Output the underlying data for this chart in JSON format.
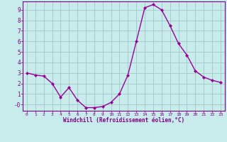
{
  "x": [
    0,
    1,
    2,
    3,
    4,
    5,
    6,
    7,
    8,
    9,
    10,
    11,
    12,
    13,
    14,
    15,
    16,
    17,
    18,
    19,
    20,
    21,
    22,
    23
  ],
  "y": [
    3.0,
    2.8,
    2.7,
    2.0,
    0.7,
    1.6,
    0.4,
    -0.3,
    -0.3,
    -0.2,
    0.2,
    1.0,
    2.8,
    6.0,
    9.2,
    9.5,
    9.0,
    7.5,
    5.8,
    4.7,
    3.2,
    2.6,
    2.3,
    2.1
  ],
  "line_color": "#990099",
  "marker": "D",
  "marker_size": 2.0,
  "bg_color": "#c8ecec",
  "grid_color": "#a8cccc",
  "xlabel": "Windchill (Refroidissement éolien,°C)",
  "xlabel_color": "#800080",
  "tick_color": "#800080",
  "ylim": [
    -0.6,
    9.8
  ],
  "xlim": [
    -0.5,
    23.5
  ],
  "yticks": [
    0,
    1,
    2,
    3,
    4,
    5,
    6,
    7,
    8,
    9
  ],
  "ytick_labels": [
    "-0",
    "1",
    "2",
    "3",
    "4",
    "5",
    "6",
    "7",
    "8",
    "9"
  ],
  "xticks": [
    0,
    1,
    2,
    3,
    4,
    5,
    6,
    7,
    8,
    9,
    10,
    11,
    12,
    13,
    14,
    15,
    16,
    17,
    18,
    19,
    20,
    21,
    22,
    23
  ],
  "spine_color": "#800080",
  "line_width": 1.0
}
